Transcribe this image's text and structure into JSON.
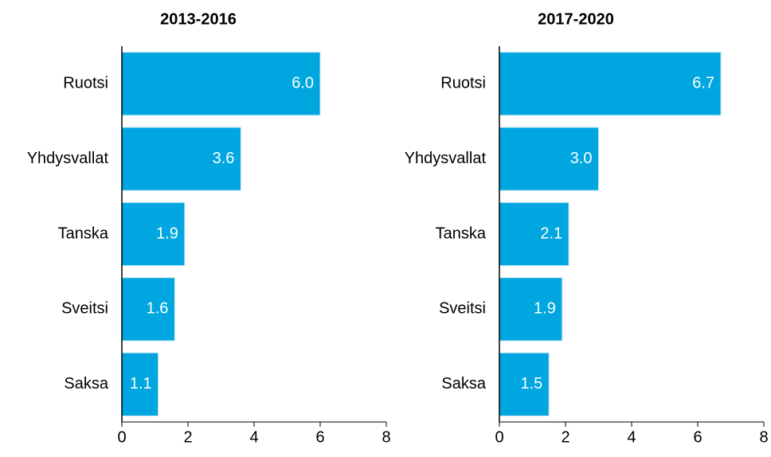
{
  "chart_data": [
    {
      "type": "barh",
      "title": "2013-2016",
      "categories": [
        "Ruotsi",
        "Yhdysvallat",
        "Tanska",
        "Sveitsi",
        "Saksa"
      ],
      "values": [
        6.0,
        3.6,
        1.9,
        1.6,
        1.1
      ],
      "value_labels": [
        "6.0",
        "3.6",
        "1.9",
        "1.6",
        "1.1"
      ],
      "color": "#00a6df",
      "xlim": [
        0,
        8
      ],
      "xticks": [
        0,
        2,
        4,
        6,
        8
      ]
    },
    {
      "type": "barh",
      "title": "2017-2020",
      "categories": [
        "Ruotsi",
        "Yhdysvallat",
        "Tanska",
        "Sveitsi",
        "Saksa"
      ],
      "values": [
        6.7,
        3.0,
        2.1,
        1.9,
        1.5
      ],
      "value_labels": [
        "6.7",
        "3.0",
        "2.1",
        "1.9",
        "1.5"
      ],
      "color": "#00a6df",
      "xlim": [
        0,
        8
      ],
      "xticks": [
        0,
        2,
        4,
        6,
        8
      ]
    }
  ]
}
